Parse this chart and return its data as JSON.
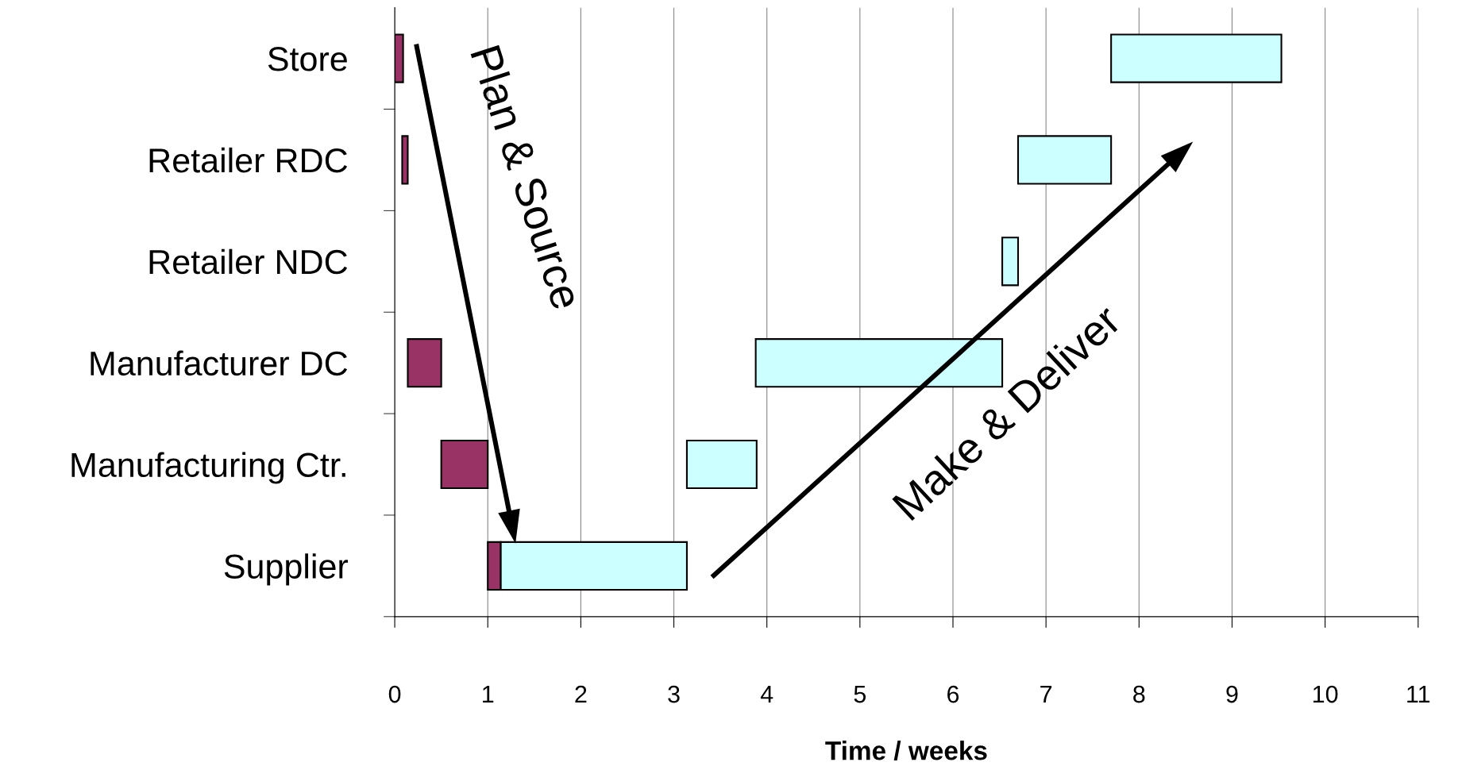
{
  "chart_data": {
    "type": "bar",
    "orientation": "horizontal",
    "categories": [
      "Store",
      "Retailer RDC",
      "Retailer NDC",
      "Manufacturer DC",
      "Manufacturing Ctr.",
      "Supplier"
    ],
    "series": [
      {
        "color": "#993366",
        "base": [
          0,
          0.08,
          null,
          0.14,
          0.5,
          1.0
        ],
        "values": [
          0.09,
          0.06,
          null,
          0.36,
          0.5,
          0.14
        ]
      },
      {
        "color": "#ccffff",
        "base": [
          7.7,
          6.7,
          6.53,
          3.88,
          3.14,
          1.14
        ],
        "values": [
          1.83,
          1.0,
          0.17,
          2.65,
          0.75,
          2.0
        ]
      }
    ],
    "xlabel": "Time / weeks",
    "xlim": [
      0,
      11
    ],
    "xticks": [
      0,
      1,
      2,
      3,
      4,
      5,
      6,
      7,
      8,
      9,
      10,
      11
    ],
    "grid": "x",
    "legend": false,
    "annotations": [
      "Plan & Source",
      "Make & Deliver"
    ]
  }
}
